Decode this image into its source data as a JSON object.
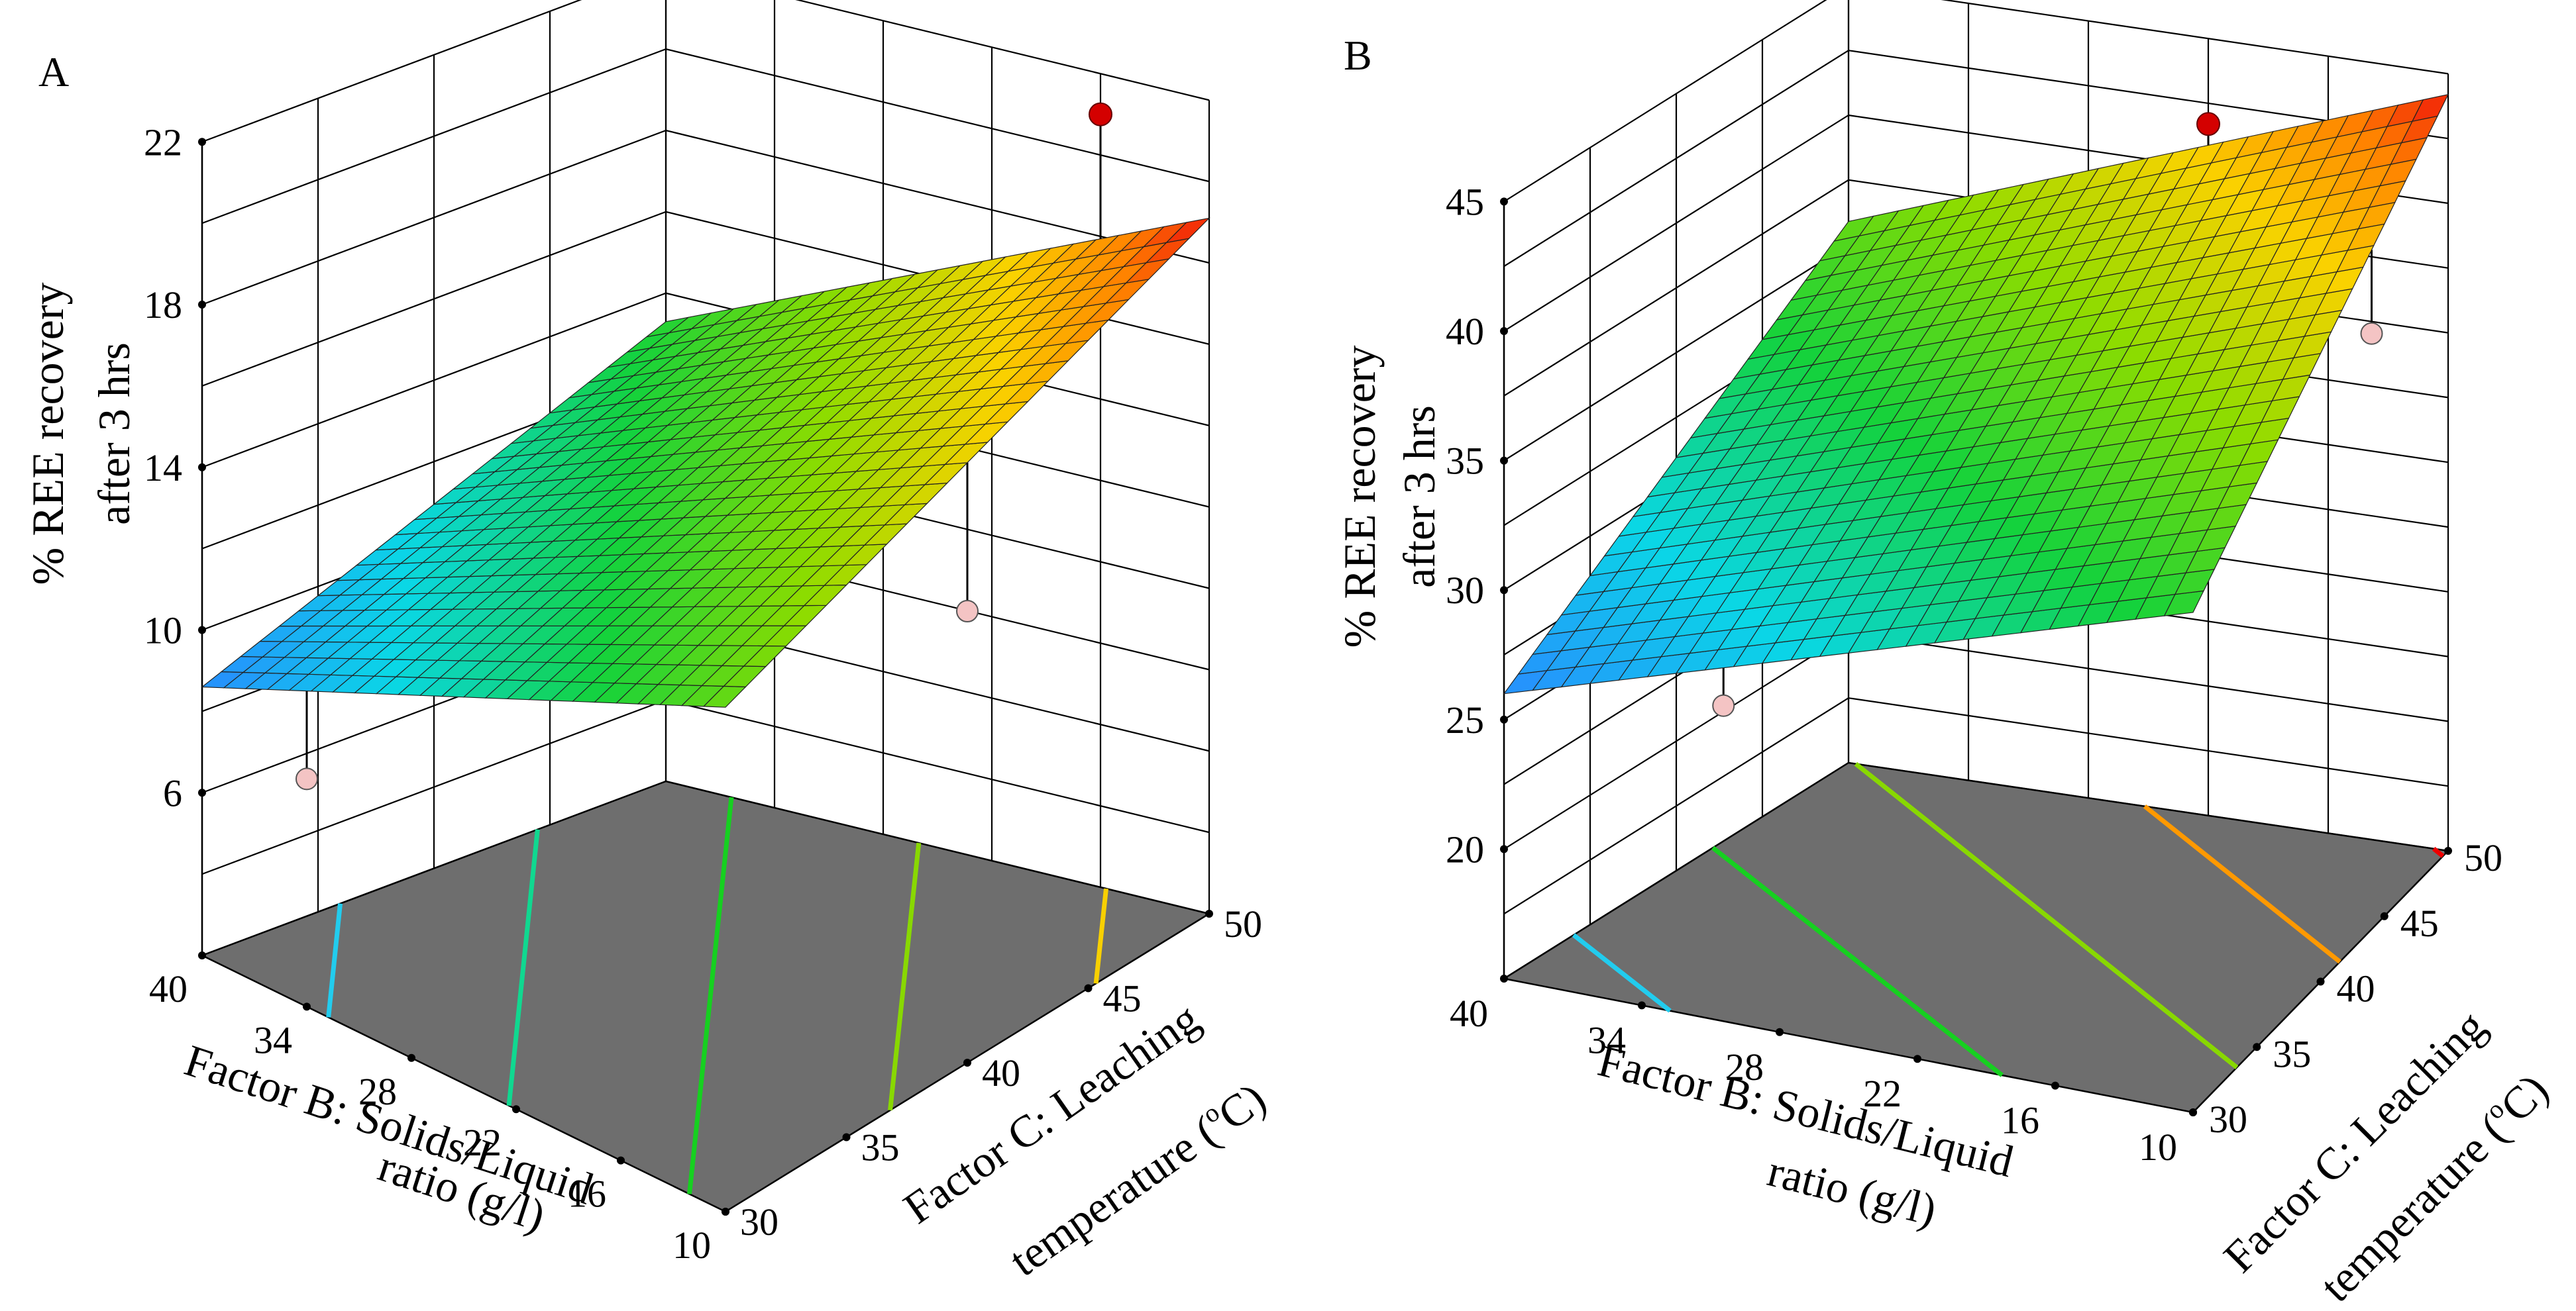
{
  "colors": {
    "floor": "#6e6e6e",
    "grid": "#000000",
    "design_point_above": "#d40000",
    "design_point_below": "#f4c4c4"
  },
  "chart_data": [
    {
      "panel": "A",
      "type": "surface3d",
      "title": "",
      "zlabel_line1": "% REE recovery",
      "zlabel_line2": "after 3 hrs",
      "xlabel_line1": "Factor B: Solids/Liquid",
      "xlabel_line2": "ratio (g/l)",
      "ylabel_line1": "Factor C: Leaching",
      "ylabel_line2": "temperature (",
      "ylabel_sup": "o",
      "ylabel_tail": "C)",
      "x_ticks": [
        "40",
        "34",
        "28",
        "22",
        "16",
        "10"
      ],
      "y_ticks": [
        "30",
        "35",
        "40",
        "45",
        "50"
      ],
      "z_ticks": [
        "6",
        "10",
        "14",
        "18",
        "22"
      ],
      "xlim": [
        10,
        40
      ],
      "ylim": [
        30,
        50
      ],
      "zlim": [
        2,
        22
      ],
      "surface": {
        "corners": [
          {
            "x": 40,
            "y": 30,
            "z": 8.6
          },
          {
            "x": 10,
            "y": 30,
            "z": 14.4
          },
          {
            "x": 10,
            "y": 50,
            "z": 19.1
          },
          {
            "x": 40,
            "y": 50,
            "z": 13.3
          }
        ],
        "color_min": 8.6,
        "color_max": 19.1
      },
      "contours": [
        {
          "z": 10.0,
          "color": "#22ccee"
        },
        {
          "z": 12.0,
          "color": "#10d890"
        },
        {
          "z": 14.0,
          "color": "#16d020"
        },
        {
          "z": 16.0,
          "color": "#88d800"
        },
        {
          "z": 18.0,
          "color": "#f8d000"
        }
      ],
      "design_points": [
        {
          "x": 16,
          "y": 50,
          "z": 21.0,
          "above": true
        },
        {
          "x": 10,
          "y": 40,
          "z": 13.1,
          "above": false
        },
        {
          "x": 34,
          "y": 30,
          "z": 7.6,
          "above": false
        }
      ]
    },
    {
      "panel": "B",
      "type": "surface3d",
      "title": "",
      "zlabel_line1": "% REE recovery",
      "zlabel_line2": "after 3 hrs",
      "xlabel_line1": "Factor B: Solids/Liquid",
      "xlabel_line2": "ratio (g/l)",
      "ylabel_line1": "Factor C: Leaching",
      "ylabel_line2": "temperature (",
      "ylabel_sup": "o",
      "ylabel_tail": "C)",
      "x_ticks": [
        "40",
        "34",
        "28",
        "22",
        "16",
        "10"
      ],
      "y_ticks": [
        "30",
        "35",
        "40",
        "45",
        "50"
      ],
      "z_ticks": [
        "20",
        "25",
        "30",
        "35",
        "40",
        "45"
      ],
      "xlim": [
        10,
        40
      ],
      "ylim": [
        30,
        50
      ],
      "zlim": [
        15,
        45
      ],
      "surface": {
        "corners": [
          {
            "x": 40,
            "y": 30,
            "z": 26.0
          },
          {
            "x": 10,
            "y": 30,
            "z": 34.3
          },
          {
            "x": 10,
            "y": 50,
            "z": 44.2
          },
          {
            "x": 40,
            "y": 50,
            "z": 35.9
          }
        ],
        "color_min": 26.0,
        "color_max": 44.2
      },
      "contours": [
        {
          "z": 28.0,
          "color": "#22ccee"
        },
        {
          "z": 32.0,
          "color": "#16d020"
        },
        {
          "z": 36.0,
          "color": "#88d800"
        },
        {
          "z": 40.0,
          "color": "#ff9900"
        },
        {
          "z": 44.0,
          "color": "#ee0000"
        }
      ],
      "design_points": [
        {
          "x": 22,
          "y": 50,
          "z": 41.7,
          "above": true
        },
        {
          "x": 10,
          "y": 44,
          "z": 38.0,
          "above": false
        },
        {
          "x": 34,
          "y": 35,
          "z": 24.4,
          "above": false
        }
      ]
    }
  ]
}
